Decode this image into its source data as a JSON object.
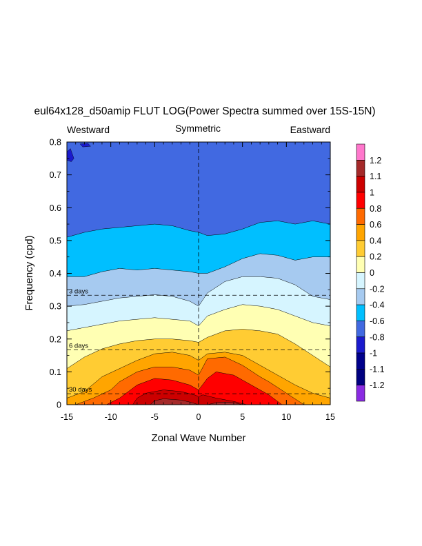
{
  "chart_data": {
    "type": "heatmap",
    "title": "eul64x128_d50amip FLUT LOG(Power Spectra summed over 15S-15N)",
    "subtitle_left": "Westward",
    "subtitle_center": "Symmetric",
    "subtitle_right": "Eastward",
    "xlabel": "Zonal Wave Number",
    "ylabel": "Frequency (cpd)",
    "xlim": [
      -15,
      15
    ],
    "ylim": [
      0,
      0.8
    ],
    "xticks": [
      -15,
      -10,
      -5,
      0,
      5,
      10,
      15
    ],
    "xtick_labels": [
      "-15",
      "-10",
      "-5",
      "0",
      "5",
      "10",
      "15"
    ],
    "yticks": [
      0,
      0.1,
      0.2,
      0.3,
      0.4,
      0.5,
      0.6,
      0.7,
      0.8
    ],
    "ytick_labels": [
      "0",
      "0.1",
      "0.2",
      "0.3",
      "0.4",
      "0.5",
      "0.6",
      "0.7",
      "0.8"
    ],
    "reference_lines": [
      {
        "label": "3 days",
        "frequency": 0.3333
      },
      {
        "label": "6 days",
        "frequency": 0.1667
      },
      {
        "label": "30 days",
        "frequency": 0.0333
      }
    ],
    "zero_wavenumber_line": 0,
    "colorbar": {
      "labels": [
        "1.2",
        "1.1",
        "1",
        "0.8",
        "0.6",
        "0.4",
        "0.2",
        "0",
        "-0.2",
        "-0.4",
        "-0.6",
        "-0.8",
        "-1",
        "-1.1",
        "-1.2"
      ],
      "colors": [
        "#ff77cc",
        "#a52a2a",
        "#cc0000",
        "#ff0000",
        "#ff6a00",
        "#ffa500",
        "#ffcc33",
        "#ffffb3",
        "#d6f5ff",
        "#a6caf0",
        "#00bfff",
        "#4169e1",
        "#1a1acd",
        "#00008b",
        "#000080",
        "#8a2be2"
      ]
    },
    "contour_levels": [
      -0.8,
      -0.6,
      -0.4,
      -0.2,
      0,
      0.2,
      0.4,
      0.6,
      0.8,
      1.0,
      1.1
    ],
    "band_colors": {
      "lt_m1": "#1a1acd",
      "m0.8": "#4169e1",
      "m0.6": "#00bfff",
      "m0.4": "#a6caf0",
      "m0.2": "#d6f5ff",
      "p0": "#ffffb3",
      "p0.2": "#ffcc33",
      "p0.4": "#ffa500",
      "p0.6": "#ff6a00",
      "p0.8": "#ff0000",
      "p1": "#cc0000",
      "p1.1": "#a52a2a"
    },
    "contours": [
      {
        "level": -0.8,
        "color": "#00bfff",
        "x": [
          -15,
          -13,
          -11,
          -9,
          -7,
          -5,
          -3,
          -1,
          0,
          1,
          3,
          5,
          7,
          9,
          11,
          13,
          15
        ],
        "y": [
          0.51,
          0.525,
          0.535,
          0.54,
          0.545,
          0.55,
          0.545,
          0.53,
          0.525,
          0.515,
          0.52,
          0.535,
          0.555,
          0.56,
          0.55,
          0.56,
          0.55
        ]
      },
      {
        "level": -0.6,
        "color": "#a6caf0",
        "x": [
          -15,
          -13,
          -11,
          -9,
          -7,
          -5,
          -3,
          -1,
          0,
          1,
          3,
          5,
          7,
          9,
          11,
          13,
          15
        ],
        "y": [
          0.39,
          0.39,
          0.405,
          0.415,
          0.41,
          0.415,
          0.41,
          0.405,
          0.4,
          0.4,
          0.42,
          0.445,
          0.46,
          0.455,
          0.44,
          0.45,
          0.45
        ]
      },
      {
        "level": -0.4,
        "color": "#d6f5ff",
        "x": [
          -15,
          -13,
          -11,
          -9,
          -7,
          -5,
          -3,
          -1,
          0,
          1,
          3,
          5,
          7,
          9,
          11,
          13,
          15
        ],
        "y": [
          0.3,
          0.305,
          0.315,
          0.325,
          0.33,
          0.335,
          0.33,
          0.315,
          0.3,
          0.34,
          0.375,
          0.39,
          0.39,
          0.385,
          0.365,
          0.33,
          0.32
        ]
      },
      {
        "level": -0.2,
        "color": "#ffffb3",
        "x": [
          -15,
          -13,
          -11,
          -9,
          -7,
          -5,
          -3,
          -1,
          0,
          1,
          3,
          5,
          7,
          9,
          11,
          13,
          15
        ],
        "y": [
          0.225,
          0.235,
          0.245,
          0.255,
          0.26,
          0.265,
          0.26,
          0.255,
          0.24,
          0.27,
          0.29,
          0.305,
          0.3,
          0.29,
          0.27,
          0.25,
          0.24
        ]
      },
      {
        "level": 0,
        "color": "#ffcc33",
        "x": [
          -15,
          -13,
          -11,
          -9,
          -7,
          -5,
          -3,
          -1,
          0,
          1,
          3,
          5,
          7,
          9,
          11,
          13,
          15
        ],
        "y": [
          0.11,
          0.145,
          0.17,
          0.185,
          0.195,
          0.2,
          0.2,
          0.195,
          0.19,
          0.205,
          0.225,
          0.23,
          0.225,
          0.215,
          0.185,
          0.15,
          0.115
        ]
      },
      {
        "level": 0.2,
        "color": "#ffa500",
        "x": [
          -15,
          -13,
          -11,
          -9,
          -7,
          -5,
          -3,
          -1,
          0,
          1,
          3,
          5,
          7,
          9,
          11,
          13,
          15
        ],
        "y": [
          0.02,
          0.04,
          0.085,
          0.11,
          0.135,
          0.155,
          0.16,
          0.15,
          0.135,
          0.155,
          0.16,
          0.15,
          0.12,
          0.09,
          0.06,
          0.035,
          0.02
        ]
      },
      {
        "level": 0.4,
        "color": "#ff6a00",
        "x": [
          -14,
          -12,
          -10,
          -9,
          -7,
          -5,
          -3,
          -1,
          0,
          1,
          3,
          5,
          7,
          8,
          10,
          12
        ],
        "y": [
          0.0,
          0.02,
          0.045,
          0.07,
          0.1,
          0.115,
          0.115,
          0.105,
          0.09,
          0.14,
          0.145,
          0.12,
          0.085,
          0.07,
          0.035,
          0.0
        ]
      },
      {
        "level": 0.6,
        "color": "#ff0000",
        "x": [
          -10.5,
          -9,
          -8,
          -7,
          -5,
          -3,
          -1,
          0,
          1,
          2,
          4,
          6,
          8,
          9.5
        ],
        "y": [
          0.0,
          0.02,
          0.04,
          0.06,
          0.08,
          0.075,
          0.06,
          0.045,
          0.08,
          0.1,
          0.09,
          0.06,
          0.03,
          0.0
        ]
      },
      {
        "level": 0.8,
        "color": "#cc0000",
        "x": [
          -7.5,
          -7,
          -6,
          -4,
          -2,
          -0.5,
          0,
          0.5,
          2,
          4,
          5.5
        ],
        "y": [
          0.0,
          0.02,
          0.035,
          0.045,
          0.04,
          0.03,
          0.025,
          0.03,
          0.02,
          0.01,
          0.0
        ]
      },
      {
        "level": 1.0,
        "color": "#a52a2a",
        "x": [
          -5.5,
          -5,
          -4,
          -3,
          -2,
          -1,
          0
        ],
        "y": [
          0.0,
          0.012,
          0.018,
          0.016,
          0.014,
          0.008,
          0.0
        ]
      },
      {
        "level": 1.0,
        "color": "#a52a2a",
        "x": [
          1,
          2,
          3,
          4,
          5
        ],
        "y": [
          0.0,
          0.006,
          0.008,
          0.006,
          0.0
        ]
      }
    ],
    "low_blob": {
      "level": -1,
      "color": "#1a1acd",
      "label": "below -1 (upper-left corner)"
    }
  }
}
